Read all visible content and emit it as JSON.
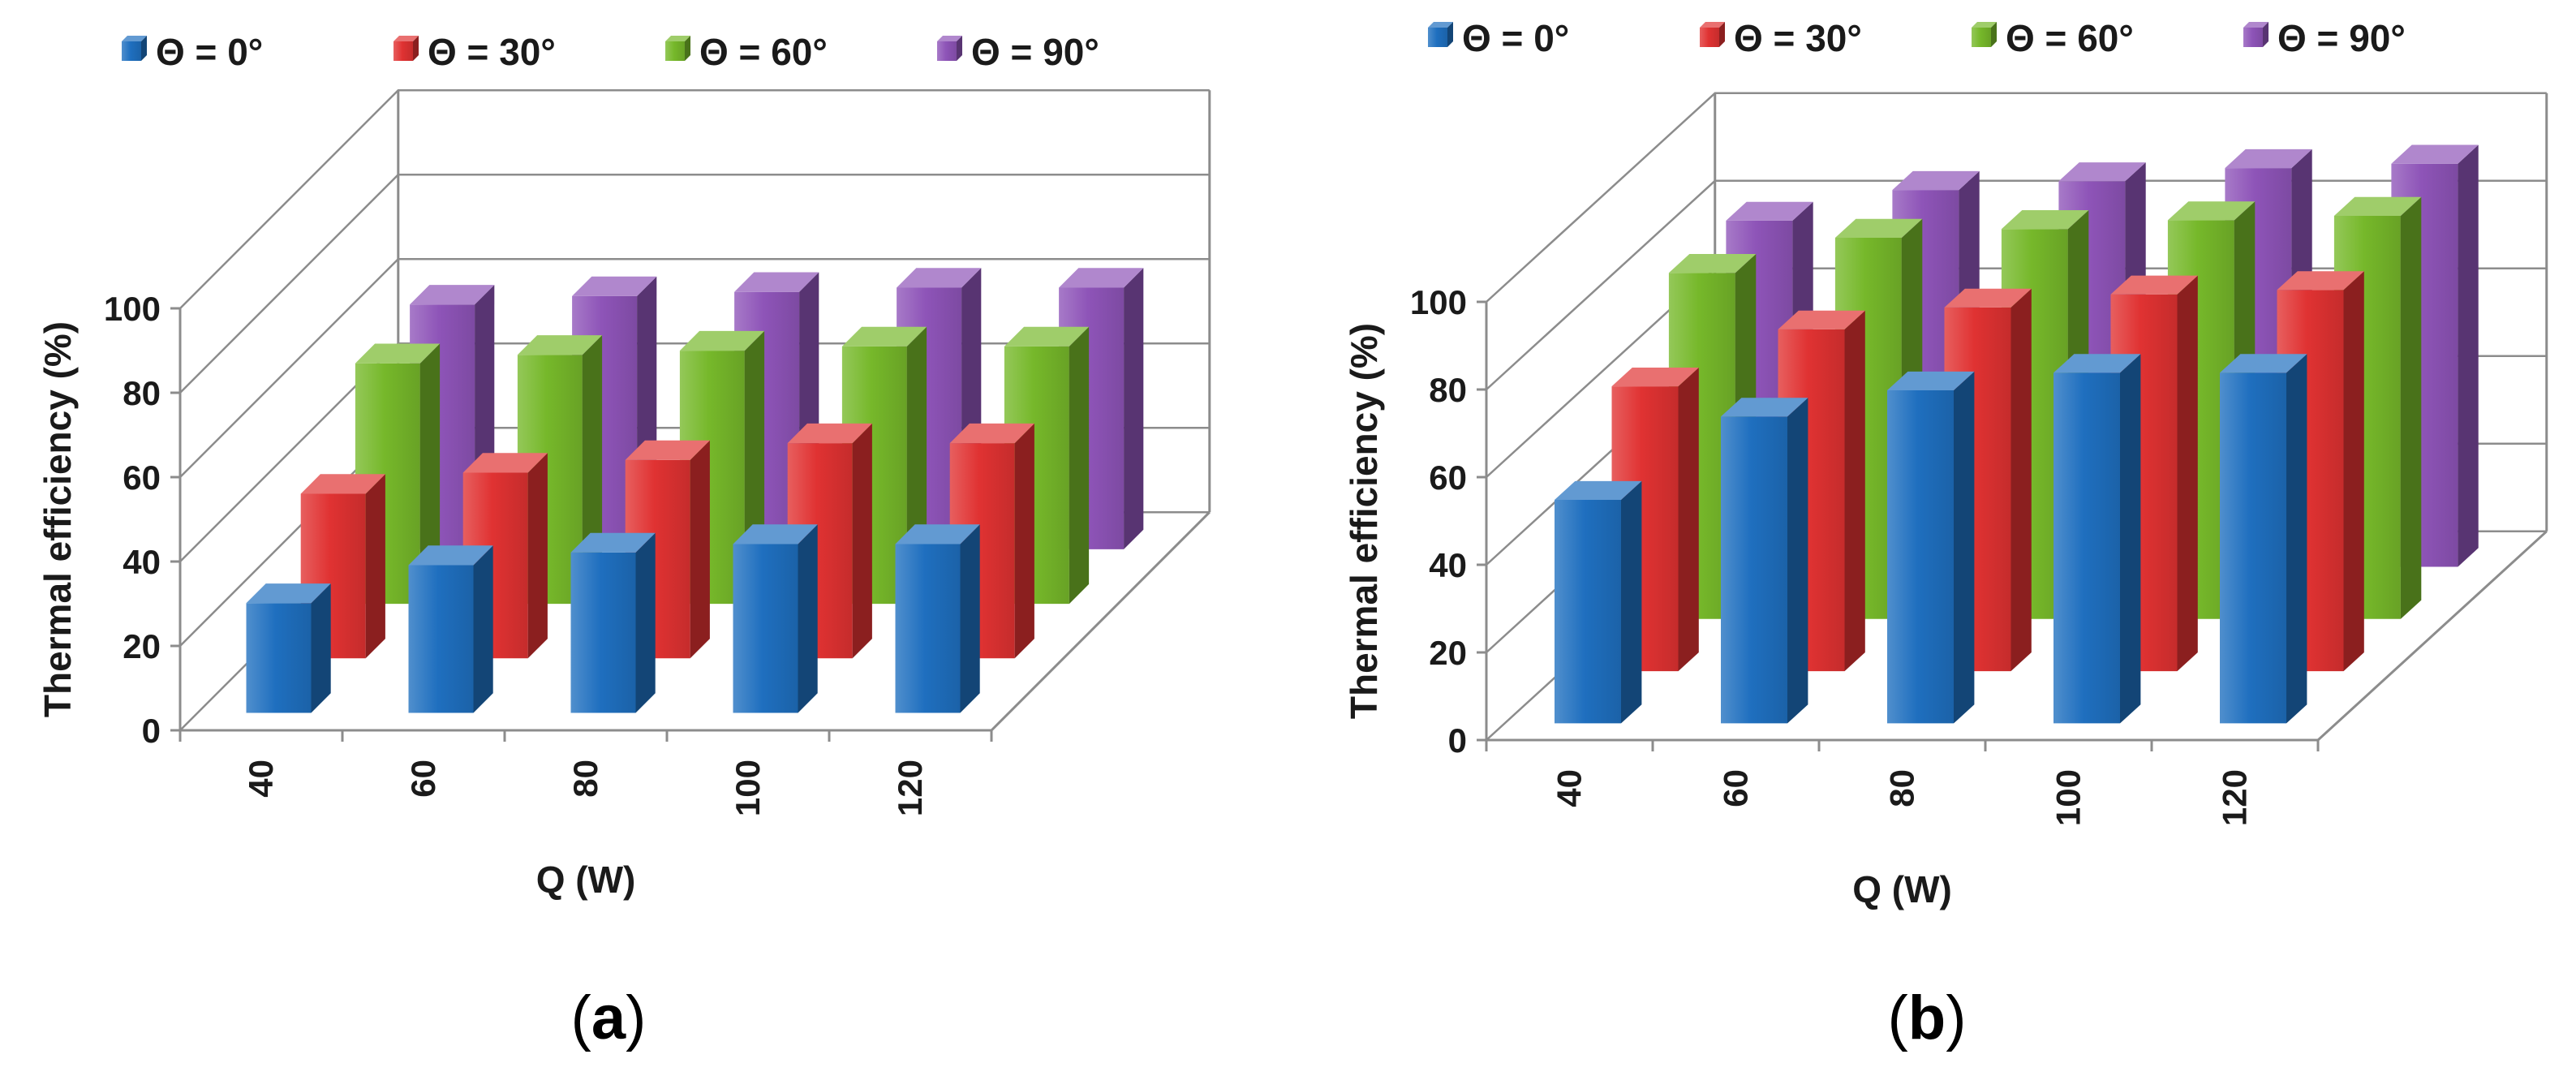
{
  "chart_data": [
    {
      "type": "bar",
      "style": "3d-clustered",
      "caption": "a",
      "categories": [
        "40",
        "60",
        "80",
        "100",
        "120"
      ],
      "series": [
        {
          "name": "Θ = 0°",
          "color": "#1f6fbf",
          "values": [
            26,
            35,
            38,
            40,
            40
          ]
        },
        {
          "name": "Θ = 30°",
          "color": "#e03232",
          "values": [
            39,
            44,
            47,
            51,
            51
          ]
        },
        {
          "name": "Θ = 60°",
          "color": "#76b82a",
          "values": [
            57,
            59,
            60,
            61,
            61
          ]
        },
        {
          "name": "Θ = 90°",
          "color": "#8e54b8",
          "values": [
            58,
            60,
            61,
            62,
            62
          ]
        }
      ],
      "xlabel": "Q (W)",
      "ylabel": "Thermal efficiency (%)",
      "ylim": [
        0,
        100
      ],
      "yticks": [
        "0",
        "20",
        "40",
        "60",
        "80",
        "100"
      ],
      "grid": true,
      "legend": "top"
    },
    {
      "type": "bar",
      "style": "3d-clustered",
      "caption": "b",
      "categories": [
        "40",
        "60",
        "80",
        "100",
        "120"
      ],
      "series": [
        {
          "name": "Θ = 0°",
          "color": "#1f6fbf",
          "values": [
            51,
            70,
            76,
            80,
            80
          ]
        },
        {
          "name": "Θ = 30°",
          "color": "#e03232",
          "values": [
            65,
            78,
            83,
            86,
            87
          ]
        },
        {
          "name": "Θ = 60°",
          "color": "#76b82a",
          "values": [
            79,
            87,
            89,
            91,
            92
          ]
        },
        {
          "name": "Θ = 90°",
          "color": "#8e54b8",
          "values": [
            79,
            86,
            88,
            91,
            92
          ]
        }
      ],
      "xlabel": "Q (W)",
      "ylabel": "Thermal efficiency (%)",
      "ylim": [
        0,
        100
      ],
      "yticks": [
        "0",
        "20",
        "40",
        "60",
        "80",
        "100"
      ],
      "grid": true,
      "legend": "top"
    }
  ]
}
